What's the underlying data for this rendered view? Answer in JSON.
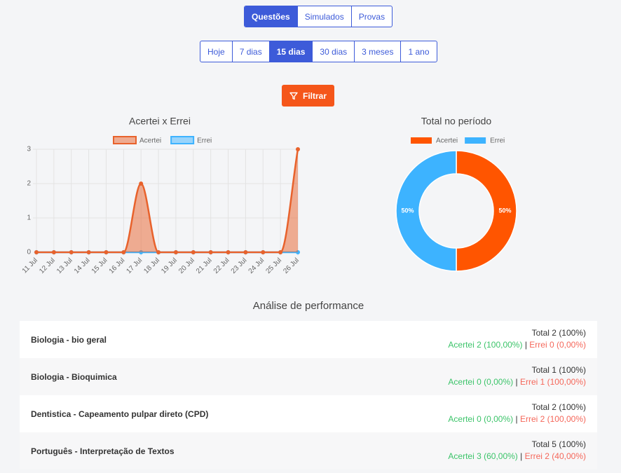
{
  "tabs": {
    "items": [
      "Questões",
      "Simulados",
      "Provas"
    ],
    "active": 0
  },
  "periods": {
    "items": [
      "Hoje",
      "7 dias",
      "15 dias",
      "30 dias",
      "3 meses",
      "1 ano"
    ],
    "active": 2
  },
  "filter_button": "Filtrar",
  "chart_data": [
    {
      "type": "line",
      "title": "Acertei x Errei",
      "categories": [
        "11 Jul",
        "12 Jul",
        "13 Jul",
        "14 Jul",
        "15 Jul",
        "16 Jul",
        "17 Jul",
        "18 Jul",
        "19 Jul",
        "20 Jul",
        "21 Jul",
        "22 Jul",
        "23 Jul",
        "24 Jul",
        "25 Jul",
        "26 Jul"
      ],
      "series": [
        {
          "name": "Acertei",
          "color": "#e8622c",
          "values": [
            0,
            0,
            0,
            0,
            0,
            0,
            2,
            0,
            0,
            0,
            0,
            0,
            0,
            0,
            0,
            3
          ]
        },
        {
          "name": "Errei",
          "color": "#3db3ff",
          "values": [
            0,
            0,
            0,
            0,
            0,
            0,
            0,
            0,
            0,
            0,
            0,
            0,
            0,
            0,
            0,
            0
          ]
        }
      ],
      "ylim": [
        0,
        3
      ],
      "yticks": [
        0,
        1,
        2,
        3
      ],
      "grid": true,
      "legend": "top"
    },
    {
      "type": "doughnut",
      "title": "Total no período",
      "categories": [
        "Acertei",
        "Errei"
      ],
      "values": [
        50,
        50
      ],
      "value_labels": [
        "50%",
        "50%"
      ],
      "colors": [
        "#ff5500",
        "#3db3ff"
      ],
      "legend": "top"
    }
  ],
  "performance": {
    "title": "Análise de performance",
    "separator": "|",
    "rows": [
      {
        "subject": "Biologia - bio geral",
        "total": "Total 2 (100%)",
        "acertei": "Acertei 2 (100,00%)",
        "errei": "Errei 0 (0,00%)"
      },
      {
        "subject": "Biologia - Bioquimica",
        "total": "Total 1 (100%)",
        "acertei": "Acertei 0 (0,00%)",
        "errei": "Errei 1 (100,00%)"
      },
      {
        "subject": "Dentistica - Capeamento pulpar direto (CPD)",
        "total": "Total 2 (100%)",
        "acertei": "Acertei 0 (0,00%)",
        "errei": "Errei 2 (100,00%)"
      },
      {
        "subject": "Português - Interpretação de Textos",
        "total": "Total 5 (100%)",
        "acertei": "Acertei 3 (60,00%)",
        "errei": "Errei 2 (40,00%)"
      }
    ]
  }
}
